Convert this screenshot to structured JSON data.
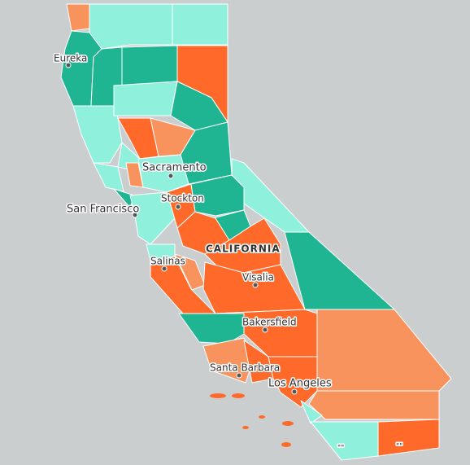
{
  "map": {
    "region_label": "CALIFORNIA",
    "cities": [
      "Eureka",
      "Sacramento",
      "Stockton",
      "San Francisco",
      "Salinas",
      "Visalia",
      "Bakersfield",
      "Santa Barbara",
      "Los Angeles"
    ],
    "border_labels": [
      "\"\"",
      "\"\""
    ]
  }
}
